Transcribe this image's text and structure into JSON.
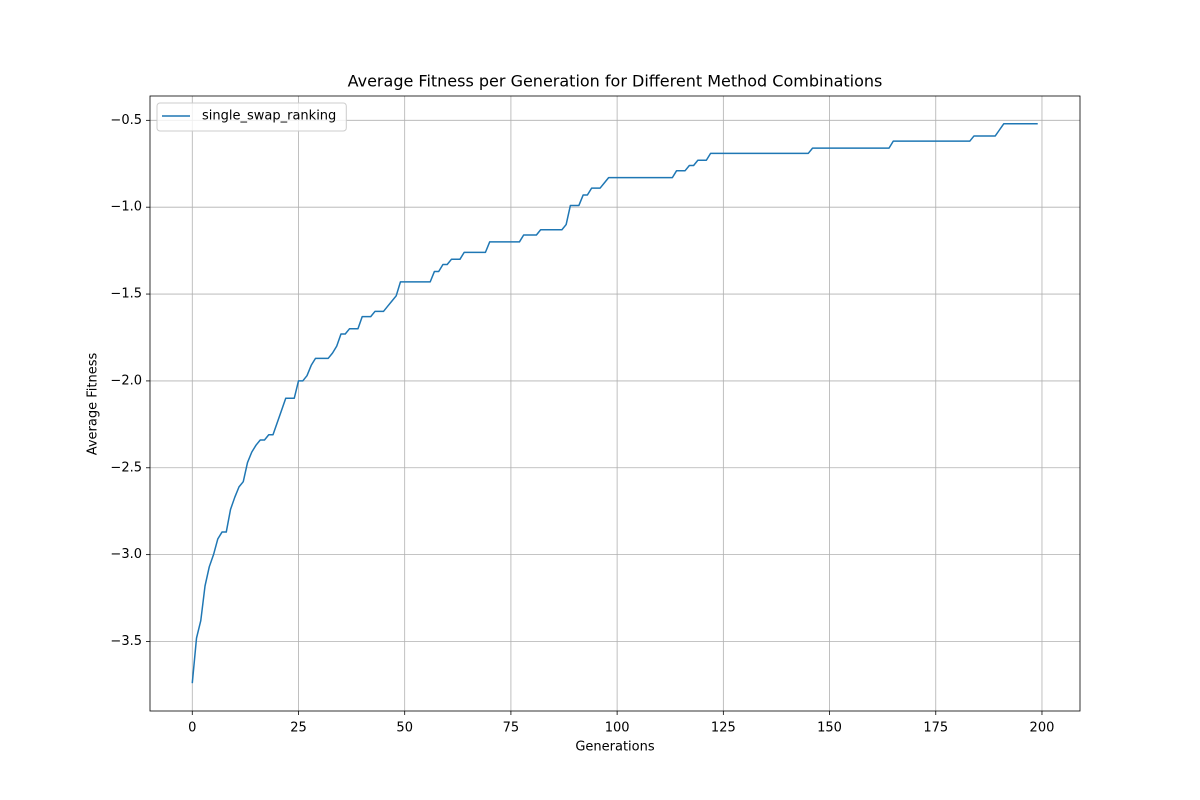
{
  "chart_data": {
    "type": "line",
    "title": "Average Fitness per Generation for Different Method Combinations",
    "xlabel": "Generations",
    "ylabel": "Average Fitness",
    "x": [
      0,
      1,
      2,
      3,
      4,
      5,
      6,
      7,
      8,
      9,
      10,
      11,
      12,
      13,
      14,
      15,
      16,
      17,
      18,
      19,
      20,
      21,
      22,
      23,
      24,
      25,
      26,
      27,
      28,
      29,
      30,
      31,
      32,
      33,
      34,
      35,
      36,
      37,
      38,
      39,
      40,
      41,
      42,
      43,
      44,
      45,
      46,
      47,
      48,
      49,
      50,
      51,
      52,
      53,
      54,
      55,
      56,
      57,
      58,
      59,
      60,
      61,
      62,
      63,
      64,
      65,
      66,
      67,
      68,
      69,
      70,
      71,
      72,
      73,
      74,
      75,
      76,
      77,
      78,
      79,
      80,
      81,
      82,
      83,
      84,
      85,
      86,
      87,
      88,
      89,
      90,
      91,
      92,
      93,
      94,
      95,
      96,
      97,
      98,
      99,
      100,
      101,
      102,
      103,
      104,
      105,
      106,
      107,
      108,
      109,
      110,
      111,
      112,
      113,
      114,
      115,
      116,
      117,
      118,
      119,
      120,
      121,
      122,
      123,
      124,
      125,
      126,
      127,
      128,
      129,
      130,
      131,
      132,
      133,
      134,
      135,
      136,
      137,
      138,
      139,
      140,
      141,
      142,
      143,
      144,
      145,
      146,
      147,
      148,
      149,
      150,
      151,
      152,
      153,
      154,
      155,
      156,
      157,
      158,
      159,
      160,
      161,
      162,
      163,
      164,
      165,
      166,
      167,
      168,
      169,
      170,
      171,
      172,
      173,
      174,
      175,
      176,
      177,
      178,
      179,
      180,
      181,
      182,
      183,
      184,
      185,
      186,
      187,
      188,
      189,
      190,
      191,
      192,
      193,
      194,
      195,
      196,
      197,
      198,
      199
    ],
    "series": [
      {
        "name": "single_swap_ranking",
        "color": "#1f77b4",
        "values": [
          -3.74,
          -3.48,
          -3.38,
          -3.18,
          -3.07,
          -3.0,
          -2.91,
          -2.87,
          -2.87,
          -2.74,
          -2.67,
          -2.61,
          -2.58,
          -2.47,
          -2.41,
          -2.37,
          -2.34,
          -2.34,
          -2.31,
          -2.31,
          -2.24,
          -2.17,
          -2.1,
          -2.1,
          -2.1,
          -2.0,
          -2.0,
          -1.97,
          -1.91,
          -1.87,
          -1.87,
          -1.87,
          -1.87,
          -1.84,
          -1.8,
          -1.73,
          -1.73,
          -1.7,
          -1.7,
          -1.7,
          -1.63,
          -1.63,
          -1.63,
          -1.6,
          -1.6,
          -1.6,
          -1.57,
          -1.54,
          -1.51,
          -1.43,
          -1.43,
          -1.43,
          -1.43,
          -1.43,
          -1.43,
          -1.43,
          -1.43,
          -1.37,
          -1.37,
          -1.33,
          -1.33,
          -1.3,
          -1.3,
          -1.3,
          -1.26,
          -1.26,
          -1.26,
          -1.26,
          -1.26,
          -1.26,
          -1.2,
          -1.2,
          -1.2,
          -1.2,
          -1.2,
          -1.2,
          -1.2,
          -1.2,
          -1.16,
          -1.16,
          -1.16,
          -1.16,
          -1.13,
          -1.13,
          -1.13,
          -1.13,
          -1.13,
          -1.13,
          -1.1,
          -0.99,
          -0.99,
          -0.99,
          -0.93,
          -0.93,
          -0.89,
          -0.89,
          -0.89,
          -0.86,
          -0.83,
          -0.83,
          -0.83,
          -0.83,
          -0.83,
          -0.83,
          -0.83,
          -0.83,
          -0.83,
          -0.83,
          -0.83,
          -0.83,
          -0.83,
          -0.83,
          -0.83,
          -0.83,
          -0.79,
          -0.79,
          -0.79,
          -0.76,
          -0.76,
          -0.73,
          -0.73,
          -0.73,
          -0.69,
          -0.69,
          -0.69,
          -0.69,
          -0.69,
          -0.69,
          -0.69,
          -0.69,
          -0.69,
          -0.69,
          -0.69,
          -0.69,
          -0.69,
          -0.69,
          -0.69,
          -0.69,
          -0.69,
          -0.69,
          -0.69,
          -0.69,
          -0.69,
          -0.69,
          -0.69,
          -0.69,
          -0.66,
          -0.66,
          -0.66,
          -0.66,
          -0.66,
          -0.66,
          -0.66,
          -0.66,
          -0.66,
          -0.66,
          -0.66,
          -0.66,
          -0.66,
          -0.66,
          -0.66,
          -0.66,
          -0.66,
          -0.66,
          -0.66,
          -0.62,
          -0.62,
          -0.62,
          -0.62,
          -0.62,
          -0.62,
          -0.62,
          -0.62,
          -0.62,
          -0.62,
          -0.62,
          -0.62,
          -0.62,
          -0.62,
          -0.62,
          -0.62,
          -0.62,
          -0.62,
          -0.62,
          -0.59,
          -0.59,
          -0.59,
          -0.59,
          -0.59,
          -0.59,
          -0.555,
          -0.52,
          -0.52,
          -0.52,
          -0.52,
          -0.52,
          -0.52,
          -0.52,
          -0.52,
          -0.52
        ]
      }
    ],
    "xlim": [
      -9.95,
      208.95
    ],
    "ylim": [
      -3.9,
      -0.36
    ],
    "xticks": [
      0,
      25,
      50,
      75,
      100,
      125,
      150,
      175,
      200
    ],
    "yticks": [
      {
        "value": -3.5,
        "label": "−3.5"
      },
      {
        "value": -3.0,
        "label": "−3.0"
      },
      {
        "value": -2.5,
        "label": "−2.5"
      },
      {
        "value": -2.0,
        "label": "−2.0"
      },
      {
        "value": -1.5,
        "label": "−1.5"
      },
      {
        "value": -1.0,
        "label": "−1.0"
      },
      {
        "value": -0.5,
        "label": "−0.5"
      }
    ],
    "grid": true,
    "legend": "upper-left"
  }
}
